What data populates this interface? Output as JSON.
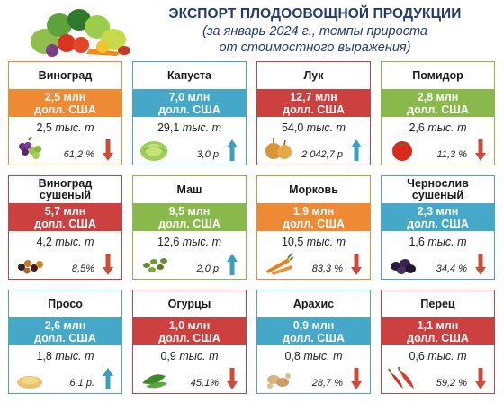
{
  "header": {
    "title": "ЭКСПОРТ ПЛОДООВОЩНОЙ ПРОДУКЦИИ",
    "subtitle_line1": "(за январь 2024 г., темпы прироста",
    "subtitle_line2": "от стоимостного выражения)"
  },
  "cards": [
    {
      "name": "Виноград",
      "value1": "2,5 млн",
      "value2": "долл. США",
      "volume_num": "2,5",
      "volume_unit": "тыс. т",
      "growth": "61,2 %",
      "trend": "down",
      "color": "orange",
      "icon": "grapes-icon"
    },
    {
      "name": "Капуста",
      "value1": "7,0 млн",
      "value2": "долл. США",
      "volume_num": "29,1",
      "volume_unit": "тыс. т",
      "growth": "3,0 р",
      "trend": "up",
      "color": "blue",
      "icon": "cabbage-icon"
    },
    {
      "name": "Лук",
      "value1": "12,7 млн",
      "value2": "долл. США",
      "volume_num": "54,0",
      "volume_unit": "тыс. т",
      "growth": "2 042,7 р",
      "trend": "up",
      "color": "red",
      "icon": "onion-icon"
    },
    {
      "name": "Помидор",
      "value1": "2,8 млн",
      "value2": "долл. США",
      "volume_num": "2,6",
      "volume_unit": "тыс. т",
      "growth": "11,3 %",
      "trend": "down",
      "color": "green",
      "icon": "tomato-icon"
    },
    {
      "name": "Виноград сушеный",
      "value1": "5,7 млн",
      "value2": "долл. США",
      "volume_num": "4,2",
      "volume_unit": "тыс. т",
      "growth": "8,5%",
      "trend": "down",
      "color": "red",
      "icon": "raisins-icon"
    },
    {
      "name": "Маш",
      "value1": "9,5 млн",
      "value2": "долл. США",
      "volume_num": "12,6",
      "volume_unit": "тыс. т",
      "growth": "2,0 р",
      "trend": "up",
      "color": "green",
      "icon": "mung-bean-icon"
    },
    {
      "name": "Морковь",
      "value1": "1,9 млн",
      "value2": "долл. США",
      "volume_num": "10,5",
      "volume_unit": "тыс. т",
      "growth": "83,3 %",
      "trend": "down",
      "color": "orange",
      "icon": "carrot-icon"
    },
    {
      "name": "Чернослив сушеный",
      "value1": "2,3 млн",
      "value2": "долл. США",
      "volume_num": "1,6",
      "volume_unit": "тыс. т",
      "growth": "34,4 %",
      "trend": "down",
      "color": "blue",
      "icon": "prunes-icon"
    },
    {
      "name": "Просо",
      "value1": "2,6 млн",
      "value2": "долл. США",
      "volume_num": "1,8",
      "volume_unit": "тыс. т",
      "growth": "6,1 р.",
      "trend": "up",
      "color": "blue",
      "icon": "millet-icon"
    },
    {
      "name": "Огурцы",
      "value1": "1,0 млн",
      "value2": "долл. США",
      "volume_num": "0,9",
      "volume_unit": "тыс. т",
      "growth": "45,1%",
      "trend": "down",
      "color": "red",
      "icon": "cucumber-icon"
    },
    {
      "name": "Арахис",
      "value1": "0,9 млн",
      "value2": "долл. США",
      "volume_num": "0,8",
      "volume_unit": "тыс. т",
      "growth": "28,7 %",
      "trend": "down",
      "color": "blue",
      "icon": "peanut-icon"
    },
    {
      "name": "Перец",
      "value1": "1,1 млн",
      "value2": "долл. США",
      "volume_num": "0,6",
      "volume_unit": "тыс. т",
      "growth": "59,2 %",
      "trend": "down",
      "color": "red",
      "icon": "pepper-icon"
    }
  ],
  "colors": {
    "up": "#3a9fc0",
    "down": "#d04a3a"
  }
}
